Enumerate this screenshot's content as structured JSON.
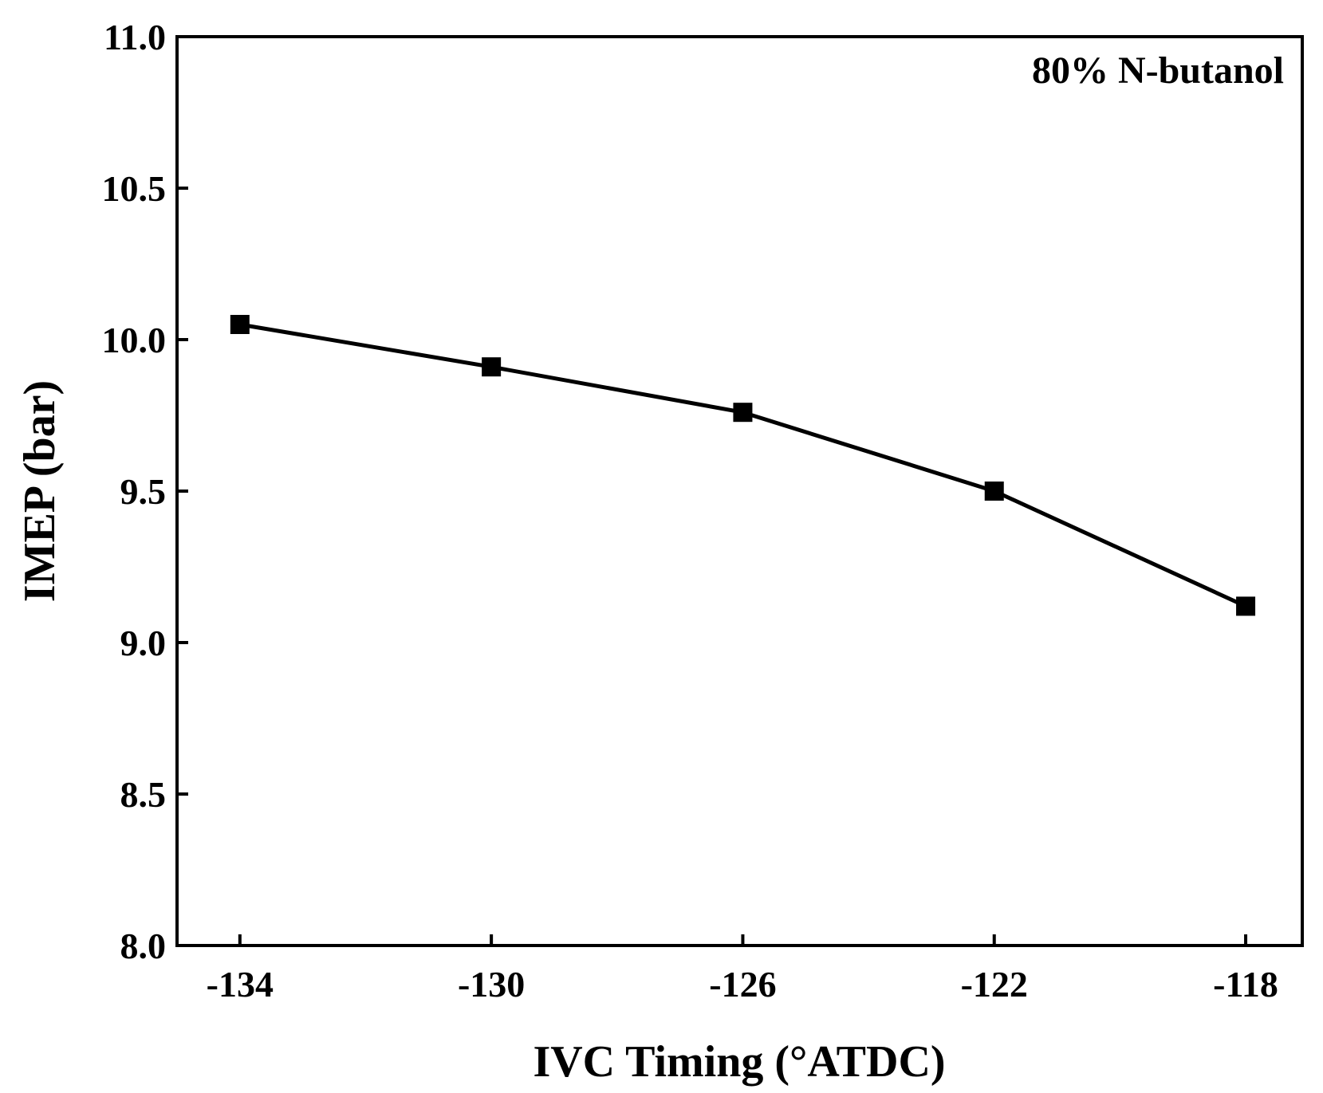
{
  "chart_data": {
    "type": "line",
    "title": "",
    "annotation": "80% N-butanol",
    "xlabel": "IVC Timing (°ATDC)",
    "ylabel": "IMEP (bar)",
    "x": [
      -134,
      -130,
      -126,
      -122,
      -118
    ],
    "xticks": [
      -134,
      -130,
      -126,
      -122,
      -118
    ],
    "xtick_labels": [
      "-134",
      "-130",
      "-126",
      "-122",
      "-118"
    ],
    "xlim": [
      -135,
      -117.1
    ],
    "ylim": [
      8.0,
      11.0
    ],
    "yticks": [
      8.0,
      8.5,
      9.0,
      9.5,
      10.0,
      10.5,
      11.0
    ],
    "ytick_labels": [
      "8.0",
      "8.5",
      "9.0",
      "9.5",
      "10.0",
      "10.5",
      "11.0"
    ],
    "grid": false,
    "series": [
      {
        "name": "80% N-butanol",
        "marker": "square",
        "color": "#000000",
        "values": [
          10.05,
          9.91,
          9.76,
          9.5,
          9.12
        ]
      }
    ]
  }
}
